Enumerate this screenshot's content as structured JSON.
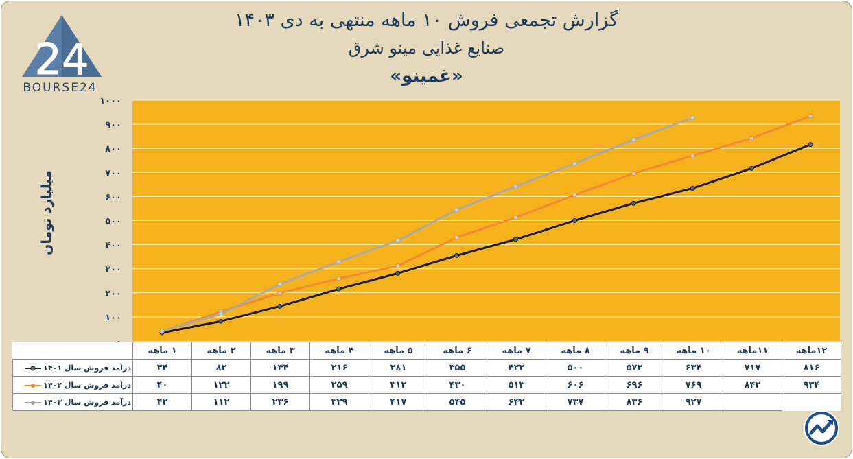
{
  "header": {
    "title_line1": "گزارش تجمعی فروش ۱۰ ماهه منتهی به دی ۱۴۰۳",
    "title_line2": "صنایع غذایی مینو شرق",
    "title_line3": "«غمینو»"
  },
  "logo": {
    "text": "BOURSE24",
    "mark": "24"
  },
  "chart_data": {
    "type": "line",
    "ylabel": "میلیارد تومان",
    "ylim": [
      0,
      1000
    ],
    "yticks": [
      "۰",
      "۱۰۰",
      "۲۰۰",
      "۳۰۰",
      "۴۰۰",
      "۵۰۰",
      "۶۰۰",
      "۷۰۰",
      "۸۰۰",
      "۹۰۰",
      "۱۰۰۰"
    ],
    "categories": [
      "۱ ماهه",
      "۲ ماهه",
      "۳ ماهه",
      "۴ ماهه",
      "۵ ماهه",
      "۶ ماهه",
      "۷ ماهه",
      "۸ ماهه",
      "۹ ماهه",
      "۱۰ ماهه",
      "۱۱ماهه",
      "۱۲ماهه"
    ],
    "grid": true,
    "series": [
      {
        "name": "درآمد فروش سال ۱۴۰۱",
        "color": "#1b1b1b",
        "values": [
          34,
          82,
          144,
          216,
          281,
          355,
          422,
          500,
          572,
          634,
          717,
          816
        ],
        "labels": [
          "۳۴",
          "۸۲",
          "۱۴۴",
          "۲۱۶",
          "۲۸۱",
          "۳۵۵",
          "۴۲۲",
          "۵۰۰",
          "۵۷۲",
          "۶۳۴",
          "۷۱۷",
          "۸۱۶"
        ]
      },
      {
        "name": "درآمد فروش سال ۱۴۰۲",
        "color": "#f08a33",
        "values": [
          40,
          122,
          199,
          259,
          312,
          430,
          513,
          606,
          696,
          769,
          842,
          934
        ],
        "labels": [
          "۴۰",
          "۱۲۲",
          "۱۹۹",
          "۲۵۹",
          "۳۱۲",
          "۴۳۰",
          "۵۱۳",
          "۶۰۶",
          "۶۹۶",
          "۷۶۹",
          "۸۴۲",
          "۹۳۴"
        ]
      },
      {
        "name": "درآمد فروش سال ۱۴۰۳",
        "color": "#a9a9a9",
        "values": [
          42,
          112,
          236,
          329,
          417,
          545,
          642,
          737,
          836,
          927,
          null,
          null
        ],
        "labels": [
          "۴۲",
          "۱۱۲",
          "۲۳۶",
          "۳۲۹",
          "۴۱۷",
          "۵۴۵",
          "۶۴۲",
          "۷۳۷",
          "۸۳۶",
          "۹۲۷",
          "",
          ""
        ]
      }
    ]
  },
  "colors": {
    "plot_bg": "#f5b21c",
    "page_bg": "#e4d9bd",
    "title": "#1f3a5a"
  },
  "icons": {
    "badge": "trend-arrow-icon"
  }
}
